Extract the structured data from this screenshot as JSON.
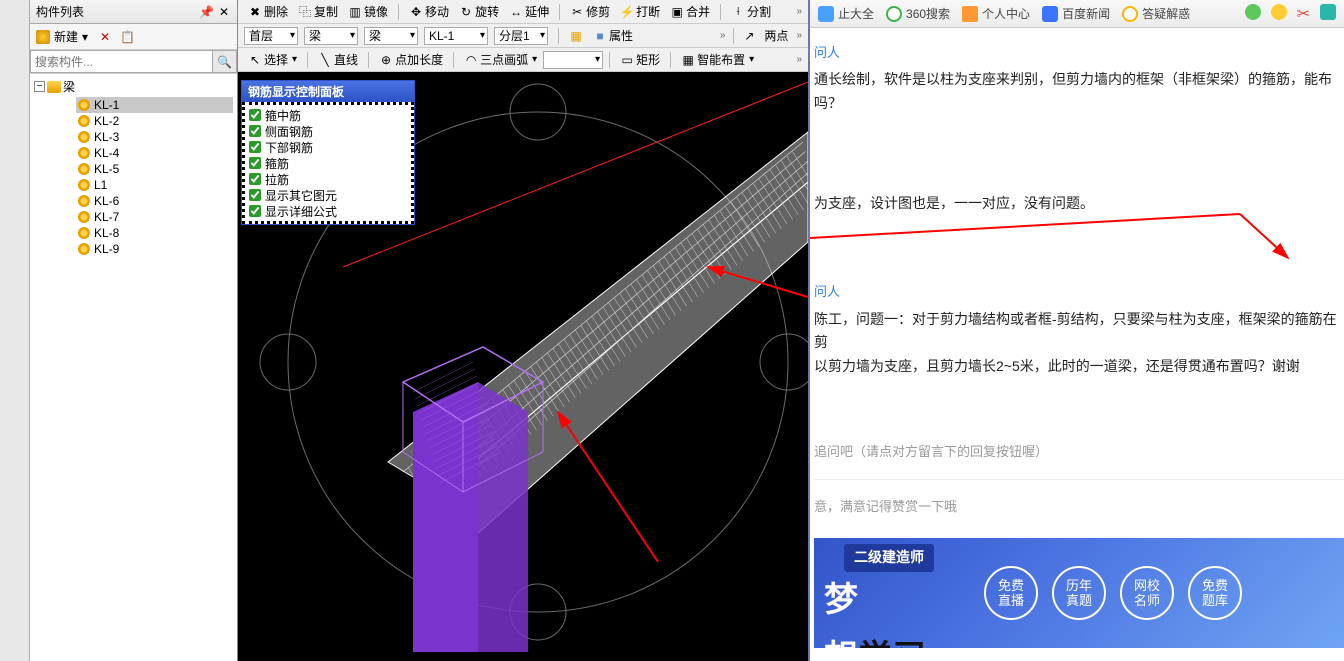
{
  "leftPanel": {
    "title": "构件列表",
    "newLabel": "新建",
    "dropdownCaret": "▾",
    "xIcon": "✕",
    "copyIcon": "📋",
    "searchPlaceholder": "搜索构件...",
    "searchIcon": "🔍",
    "treeMinus": "−",
    "rootLabel": "梁",
    "items": [
      {
        "label": "KL-1",
        "selected": true
      },
      {
        "label": "KL-2",
        "selected": false
      },
      {
        "label": "KL-3",
        "selected": false
      },
      {
        "label": "KL-4",
        "selected": false
      },
      {
        "label": "KL-5",
        "selected": false
      },
      {
        "label": "L1",
        "selected": false
      },
      {
        "label": "KL-6",
        "selected": false
      },
      {
        "label": "KL-7",
        "selected": false
      },
      {
        "label": "KL-8",
        "selected": false
      },
      {
        "label": "KL-9",
        "selected": false
      }
    ]
  },
  "toolbars": {
    "row1": [
      {
        "icon": "✖",
        "label": "删除"
      },
      {
        "icon": "⿻",
        "label": "复制"
      },
      {
        "icon": "▥",
        "label": "镜像"
      },
      {
        "icon": "✥",
        "label": "移动"
      },
      {
        "icon": "↻",
        "label": "旋转"
      },
      {
        "icon": "↔",
        "label": "延伸"
      },
      {
        "icon": "✂",
        "label": "修剪"
      },
      {
        "icon": "⚡",
        "label": "打断"
      },
      {
        "icon": "▣",
        "label": "合并"
      },
      {
        "icon": "⟊",
        "label": "分割"
      }
    ],
    "row2": {
      "d1": "首层",
      "d2": "梁",
      "d3": "梁",
      "d4": "KL-1",
      "d5": "分层1",
      "attr": "属性",
      "twoPt": "两点"
    },
    "row3": [
      {
        "icon": "↖",
        "label": "选择"
      },
      {
        "icon": "╲",
        "label": "直线"
      },
      {
        "icon": "⊕",
        "label": "点加长度"
      },
      {
        "icon": "◠",
        "label": "三点画弧"
      },
      {
        "icon": "▭",
        "label": "矩形"
      },
      {
        "icon": "▦",
        "label": "智能布置"
      }
    ],
    "caret": "▾",
    "chev": "»",
    "expIcon": "▦",
    "attrIcon": "■",
    "rectIcon": "▭"
  },
  "ctrlPanel": {
    "title": "钢筋显示控制面板",
    "items": [
      "箍中筋",
      "侧面钢筋",
      "下部钢筋",
      "箍筋",
      "拉筋",
      "显示其它图元",
      "显示详细公式"
    ]
  },
  "scene": {
    "bg": "#000000",
    "beamFill": "rgba(220,220,220,0.45)",
    "beamStroke": "#ffffff",
    "rebarColor": "#dcdcdc",
    "columnColor": "#7a33cc",
    "columnHighlight": "#b070f0",
    "circleColor": "#6b6b6b",
    "redArrow": "#ff0000",
    "redLine": "#ff1a1a"
  },
  "favbar": {
    "items": [
      {
        "label": "止大全",
        "ico": "ico-blue"
      },
      {
        "label": "360搜索",
        "ico": "ico-green-o"
      },
      {
        "label": "个人中心",
        "ico": "ico-orange"
      },
      {
        "label": "百度新闻",
        "ico": "ico-paw"
      },
      {
        "label": "答疑解惑",
        "ico": "ico-yellow-c"
      }
    ],
    "rightIcons": [
      "ico-green-c",
      "ico-yellow-dash",
      "ico-scissors",
      "ico-teal"
    ]
  },
  "qa": {
    "meta1": "问人",
    "q1": "通长绘制，软件是以柱为支座来判别，但剪力墙内的框架（非框架梁）的箍筋，能布吗？",
    "a1": "为支座，设计图也是，一一对应，没有问题。",
    "meta2": "问人",
    "q2a": "陈工，问题一：对于剪力墙结构或者框-剪结构，只要梁与柱为支座，框架梁的箍筋在剪",
    "q2b": "以剪力墙为支座，且剪力墙长2~5米，此时的一道梁，还是得贯通布置吗？谢谢",
    "ask": "追问吧（请点对方留言下的回复按钮喔）",
    "note": "意，满意记得赞赏一下哦"
  },
  "banner": {
    "tag": "二级建造师",
    "titleA": "梦",
    "titleB": "想",
    "titleC": "学习",
    "circles": [
      "免费\n直播",
      "历年\n真题",
      "网校\n名师",
      "免费\n题库"
    ]
  }
}
